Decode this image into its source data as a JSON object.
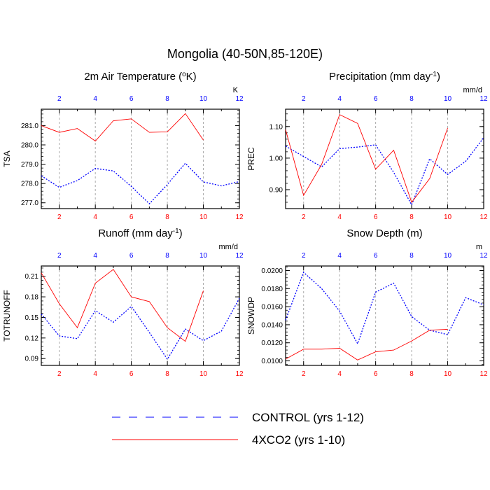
{
  "main_title": "Mongolia (40-50N,85-120E)",
  "colors": {
    "control": "#0000ff",
    "co2": "#ff0000",
    "grid": "#aaaaaa",
    "axis": "#000000"
  },
  "legend": [
    {
      "label": "CONTROL (yrs 1-12)",
      "style": "dashed",
      "color": "#0000ff"
    },
    {
      "label": "4XCO2 (yrs 1-10)",
      "style": "solid",
      "color": "#ff0000"
    }
  ],
  "chart_data": [
    {
      "type": "line",
      "title": "2m Air Temperature (oK)",
      "title_main": "2m Air Temperature (",
      "title_sup": "o",
      "title_tail": "K)",
      "ylabel": "TSA",
      "units": "K",
      "xlim": [
        1,
        12
      ],
      "ylim": [
        276.7,
        281.85
      ],
      "yticks": [
        277.0,
        278.0,
        279.0,
        280.0,
        281.0
      ],
      "ytick_labels": [
        "277.0",
        "278.0",
        "279.0",
        "280.0",
        "281.0"
      ],
      "xticks": [
        2,
        4,
        6,
        8,
        10,
        12
      ],
      "xtick_labels": [
        "2",
        "4",
        "6",
        "8",
        "10",
        "12"
      ],
      "series": [
        {
          "name": "CONTROL (yrs 1-12)",
          "x": [
            1,
            2,
            3,
            4,
            5,
            6,
            7,
            8,
            9,
            10,
            11,
            12
          ],
          "values": [
            278.4,
            277.8,
            278.15,
            278.78,
            278.65,
            277.85,
            276.95,
            277.95,
            279.05,
            278.08,
            277.88,
            278.1
          ]
        },
        {
          "name": "4XCO2 (yrs 1-10)",
          "x": [
            1,
            2,
            3,
            4,
            5,
            6,
            7,
            8,
            9,
            10
          ],
          "values": [
            281.0,
            280.65,
            280.85,
            280.2,
            281.25,
            281.35,
            280.65,
            280.68,
            281.62,
            280.25
          ]
        }
      ]
    },
    {
      "type": "line",
      "title": "Precipitation (mm day-1)",
      "title_main": "Precipitation (mm day",
      "title_sup": "-1",
      "title_tail": ")",
      "ylabel": "PREC",
      "units": "mm/d",
      "xlim": [
        1,
        12
      ],
      "ylim": [
        0.84,
        1.155
      ],
      "yticks": [
        0.9,
        1.0,
        1.1
      ],
      "ytick_labels": [
        "0.90",
        "1.00",
        "1.10"
      ],
      "xticks": [
        2,
        4,
        6,
        8,
        10,
        12
      ],
      "xtick_labels": [
        "2",
        "4",
        "6",
        "8",
        "10",
        "12"
      ],
      "series": [
        {
          "name": "CONTROL (yrs 1-12)",
          "x": [
            1,
            2,
            3,
            4,
            5,
            6,
            7,
            8,
            9,
            10,
            11,
            12
          ],
          "values": [
            1.038,
            1.005,
            0.972,
            1.03,
            1.035,
            1.042,
            0.955,
            0.852,
            0.998,
            0.948,
            0.99,
            1.065
          ]
        },
        {
          "name": "4XCO2 (yrs 1-10)",
          "x": [
            1,
            2,
            3,
            4,
            5,
            6,
            7,
            8,
            9,
            10
          ],
          "values": [
            1.09,
            0.882,
            0.98,
            1.138,
            1.11,
            0.965,
            1.025,
            0.86,
            0.935,
            1.095
          ]
        }
      ]
    },
    {
      "type": "line",
      "title": "Runoff (mm day-1)",
      "title_main": "Runoff (mm day",
      "title_sup": "-1",
      "title_tail": ")",
      "ylabel": "TOTRUNOFF",
      "units": "mm/d",
      "xlim": [
        1,
        12
      ],
      "ylim": [
        0.08,
        0.225
      ],
      "yticks": [
        0.09,
        0.12,
        0.15,
        0.18,
        0.21
      ],
      "ytick_labels": [
        "0.09",
        "0.12",
        "0.15",
        "0.18",
        "0.21"
      ],
      "xticks": [
        2,
        4,
        6,
        8,
        10,
        12
      ],
      "xtick_labels": [
        "2",
        "4",
        "6",
        "8",
        "10",
        "12"
      ],
      "series": [
        {
          "name": "CONTROL (yrs 1-12)",
          "x": [
            1,
            2,
            3,
            4,
            5,
            6,
            7,
            8,
            9,
            10,
            11,
            12
          ],
          "values": [
            0.155,
            0.123,
            0.119,
            0.16,
            0.143,
            0.166,
            0.128,
            0.089,
            0.133,
            0.116,
            0.13,
            0.178
          ]
        },
        {
          "name": "4XCO2 (yrs 1-10)",
          "x": [
            1,
            2,
            3,
            4,
            5,
            6,
            7,
            8,
            9,
            10
          ],
          "values": [
            0.215,
            0.17,
            0.135,
            0.2,
            0.22,
            0.18,
            0.173,
            0.135,
            0.115,
            0.189
          ]
        }
      ]
    },
    {
      "type": "line",
      "title": "Snow Depth (m)",
      "title_main": "Snow Depth (m)",
      "title_sup": "",
      "title_tail": "",
      "ylabel": "SNOWDP",
      "units": "m",
      "xlim": [
        1,
        12
      ],
      "ylim": [
        0.0095,
        0.0205
      ],
      "yticks": [
        0.01,
        0.012,
        0.014,
        0.016,
        0.018,
        0.02
      ],
      "ytick_labels": [
        "0.0100",
        "0.0120",
        "0.0140",
        "0.0160",
        "0.0180",
        "0.0200"
      ],
      "xticks": [
        2,
        4,
        6,
        8,
        10,
        12
      ],
      "xtick_labels": [
        "2",
        "4",
        "6",
        "8",
        "10",
        "12"
      ],
      "series": [
        {
          "name": "CONTROL (yrs 1-12)",
          "x": [
            1,
            2,
            3,
            4,
            5,
            6,
            7,
            8,
            9,
            10,
            11,
            12
          ],
          "values": [
            0.0145,
            0.0198,
            0.018,
            0.0155,
            0.0119,
            0.0176,
            0.0186,
            0.0149,
            0.0134,
            0.0129,
            0.017,
            0.0162
          ]
        },
        {
          "name": "4XCO2 (yrs 1-10)",
          "x": [
            1,
            2,
            3,
            4,
            5,
            6,
            7,
            8,
            9,
            10
          ],
          "values": [
            0.0102,
            0.0113,
            0.0113,
            0.0114,
            0.0101,
            0.011,
            0.0112,
            0.0122,
            0.0134,
            0.0135
          ]
        }
      ]
    }
  ]
}
